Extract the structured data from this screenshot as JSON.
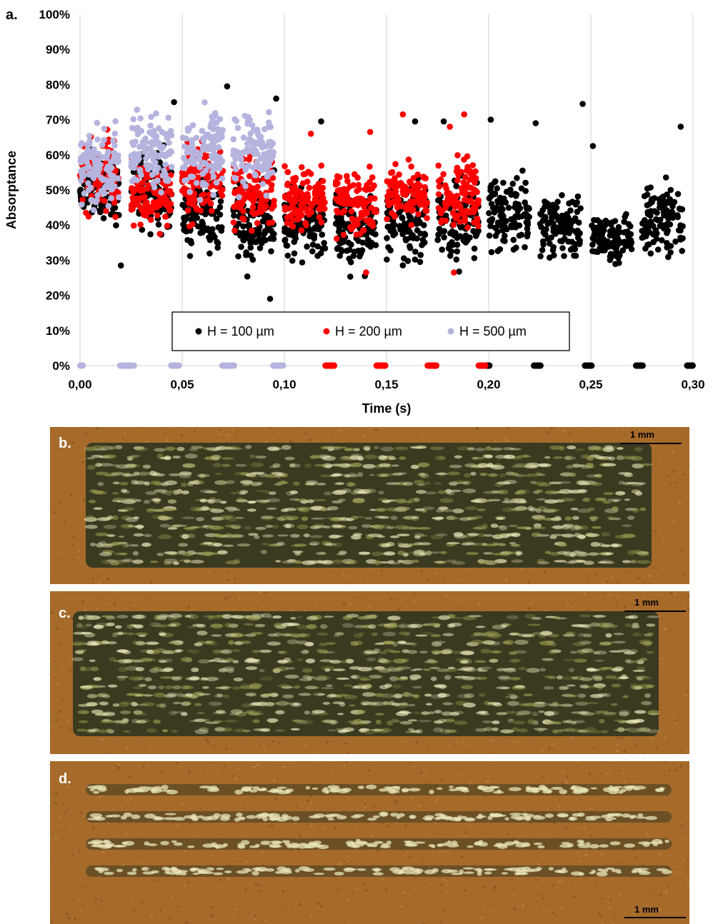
{
  "chart_data": {
    "type": "scatter",
    "panel_label": "a.",
    "title": "",
    "xlabel": "Time (s)",
    "ylabel": "Absorptance",
    "xlim": [
      0,
      0.3
    ],
    "ylim": [
      0,
      100
    ],
    "x_ticks": [
      "0,00",
      "0,05",
      "0,10",
      "0,15",
      "0,20",
      "0,25",
      "0,30"
    ],
    "x_tick_values": [
      0,
      0.05,
      0.1,
      0.15,
      0.2,
      0.25,
      0.3
    ],
    "y_ticks": [
      "0%",
      "10%",
      "20%",
      "30%",
      "40%",
      "50%",
      "60%",
      "70%",
      "80%",
      "90%",
      "100%"
    ],
    "y_tick_values": [
      0,
      10,
      20,
      30,
      40,
      50,
      60,
      70,
      80,
      90,
      100
    ],
    "grid": "vertical",
    "legend_placement": "bottom-center",
    "series": [
      {
        "name": "H = 100 µm",
        "color": "#000000",
        "clusters": [
          {
            "x_start": 0.0,
            "x_end": 0.019,
            "y_low": 36,
            "y_high": 66,
            "count": 110
          },
          {
            "x_start": 0.025,
            "x_end": 0.045,
            "y_low": 33,
            "y_high": 65,
            "count": 110
          },
          {
            "x_start": 0.05,
            "x_end": 0.07,
            "y_low": 28,
            "y_high": 60,
            "count": 110
          },
          {
            "x_start": 0.075,
            "x_end": 0.095,
            "y_low": 24,
            "y_high": 58,
            "count": 110
          },
          {
            "x_start": 0.1,
            "x_end": 0.12,
            "y_low": 25,
            "y_high": 56,
            "count": 110
          },
          {
            "x_start": 0.125,
            "x_end": 0.145,
            "y_low": 23,
            "y_high": 55,
            "count": 110
          },
          {
            "x_start": 0.15,
            "x_end": 0.17,
            "y_low": 25,
            "y_high": 58,
            "count": 110
          },
          {
            "x_start": 0.175,
            "x_end": 0.195,
            "y_low": 25,
            "y_high": 58,
            "count": 110
          },
          {
            "x_start": 0.2,
            "x_end": 0.22,
            "y_low": 28,
            "y_high": 58,
            "count": 110
          },
          {
            "x_start": 0.225,
            "x_end": 0.245,
            "y_low": 27,
            "y_high": 52,
            "count": 110
          },
          {
            "x_start": 0.25,
            "x_end": 0.27,
            "y_low": 26,
            "y_high": 46,
            "count": 110
          },
          {
            "x_start": 0.275,
            "x_end": 0.295,
            "y_low": 27,
            "y_high": 56,
            "count": 110
          }
        ],
        "outliers": [
          [
            0.072,
            79.5
          ],
          [
            0.046,
            75
          ],
          [
            0.096,
            76
          ],
          [
            0.093,
            19
          ],
          [
            0.118,
            69.5
          ],
          [
            0.164,
            69.5
          ],
          [
            0.178,
            69.5
          ],
          [
            0.223,
            69
          ],
          [
            0.246,
            74.5
          ],
          [
            0.294,
            68
          ],
          [
            0.02,
            28.5
          ],
          [
            0.201,
            70
          ],
          [
            0.251,
            62.5
          ]
        ],
        "zero_markers": [
          [
            0.021,
            0.0245
          ],
          [
            0.071,
            0.0745
          ],
          [
            0.121,
            0.1245
          ],
          [
            0.146,
            0.1495
          ],
          [
            0.171,
            0.1745
          ],
          [
            0.197,
            0.2005
          ],
          [
            0.222,
            0.2255
          ],
          [
            0.247,
            0.2505
          ],
          [
            0.272,
            0.2755
          ],
          [
            0.297,
            0.3
          ]
        ]
      },
      {
        "name": "H = 200 µm",
        "color": "#ff0000",
        "clusters": [
          {
            "x_start": 0.0,
            "x_end": 0.019,
            "y_low": 40,
            "y_high": 70,
            "count": 100
          },
          {
            "x_start": 0.025,
            "x_end": 0.045,
            "y_low": 35,
            "y_high": 62,
            "count": 100
          },
          {
            "x_start": 0.05,
            "x_end": 0.07,
            "y_low": 38,
            "y_high": 66,
            "count": 100
          },
          {
            "x_start": 0.075,
            "x_end": 0.095,
            "y_low": 35,
            "y_high": 65,
            "count": 100
          },
          {
            "x_start": 0.1,
            "x_end": 0.12,
            "y_low": 36,
            "y_high": 60,
            "count": 100
          },
          {
            "x_start": 0.125,
            "x_end": 0.145,
            "y_low": 34,
            "y_high": 58,
            "count": 100
          },
          {
            "x_start": 0.15,
            "x_end": 0.17,
            "y_low": 36,
            "y_high": 60,
            "count": 100
          },
          {
            "x_start": 0.175,
            "x_end": 0.195,
            "y_low": 34,
            "y_high": 62,
            "count": 100
          }
        ],
        "outliers": [
          [
            0.158,
            71.5
          ],
          [
            0.188,
            71.5
          ],
          [
            0.181,
            68
          ],
          [
            0.142,
            66.5
          ],
          [
            0.113,
            66
          ],
          [
            0.14,
            26.5
          ],
          [
            0.183,
            26.5
          ]
        ],
        "zero_markers": [
          [
            0.12,
            0.1245
          ],
          [
            0.145,
            0.1495
          ],
          [
            0.17,
            0.1745
          ],
          [
            0.195,
            0.1985
          ]
        ]
      },
      {
        "name": "H = 500 µm",
        "color": "#b4b4de",
        "clusters": [
          {
            "x_start": 0.0,
            "x_end": 0.019,
            "y_low": 40,
            "y_high": 73,
            "count": 110
          },
          {
            "x_start": 0.025,
            "x_end": 0.045,
            "y_low": 46,
            "y_high": 76,
            "count": 110
          },
          {
            "x_start": 0.05,
            "x_end": 0.07,
            "y_low": 44,
            "y_high": 78,
            "count": 110
          },
          {
            "x_start": 0.075,
            "x_end": 0.095,
            "y_low": 46,
            "y_high": 75,
            "count": 110
          }
        ],
        "outliers": [],
        "zero_markers": [
          [
            0.0,
            0.0015
          ],
          [
            0.0195,
            0.0265
          ],
          [
            0.0445,
            0.0485
          ],
          [
            0.0695,
            0.0755
          ],
          [
            0.0945,
            0.0995
          ]
        ]
      }
    ]
  },
  "panels": [
    {
      "label": "b.",
      "scale_bar": "1 mm",
      "pattern": "filled-dark"
    },
    {
      "label": "c.",
      "scale_bar": "1 mm",
      "pattern": "filled-bands"
    },
    {
      "label": "d.",
      "scale_bar": "1 mm",
      "pattern": "tracks"
    }
  ],
  "colors": {
    "substrate": "#a66a2a",
    "substrate_dark": "#7a4a1c",
    "melt_pool": "#3a3a20",
    "melt_highlight": "#e8e4b8"
  }
}
